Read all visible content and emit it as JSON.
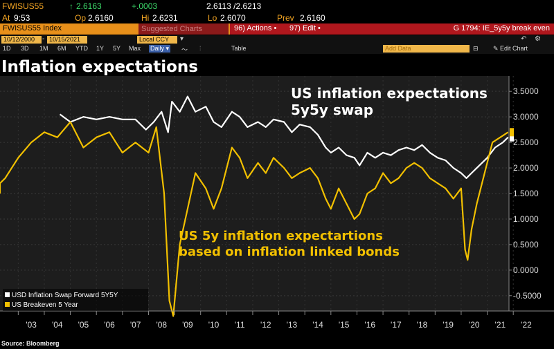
{
  "quote": {
    "ticker": "FWISUS55",
    "last_arrow": "↑",
    "last": "2.6163",
    "change": "+.0003",
    "bid_ask": "2.6113 /2.6213",
    "at_label": "At",
    "at_time": "9:53",
    "open_label": "Op",
    "open": "2.6160",
    "high_label": "Hi",
    "high": "2.6231",
    "low_label": "Lo",
    "low": "2.6070",
    "prev_label": "Prev",
    "prev": "2.6160"
  },
  "menubar": {
    "index_name": "FWISUS55 Index",
    "suggested": "Suggested Charts",
    "actions": "96) Actions •",
    "edit": "97) Edit •",
    "chart_id": "G 1794: IE_5y5y break even"
  },
  "toolbar": {
    "start_date": "10/12/2000",
    "end_date": "10/15/2021",
    "currency": "Local CCY",
    "ranges": [
      "1D",
      "3D",
      "1M",
      "6M",
      "YTD",
      "1Y",
      "5Y",
      "Max"
    ],
    "frequency": "Daily ▾",
    "table": "Table",
    "add_data": "Add Data",
    "edit_chart": "✎ Edit Chart"
  },
  "page_title": "Inflation expectations",
  "annotations": {
    "white_line1": "US inflation expectations",
    "white_line2": "5y5y swap",
    "yellow_line1": "US 5y inflation expectartions",
    "yellow_line2": "based on inflation linked bonds"
  },
  "source": "Source: Bloomberg",
  "colors": {
    "swap": "#ffffff",
    "breakeven": "#f2c000",
    "accent": "#e8901a",
    "red_bar": "#b0171d"
  },
  "chart_data": {
    "type": "line",
    "xlabel": "",
    "ylabel": "",
    "x_ticks": [
      "'03",
      "'04",
      "'05",
      "'06",
      "'07",
      "'08",
      "'09",
      "'10",
      "'11",
      "'12",
      "'13",
      "'14",
      "'15",
      "'16",
      "'17",
      "'18",
      "'19",
      "'20",
      "'21",
      "'22"
    ],
    "y_ticks": [
      "3.5000",
      "3.0000",
      "2.5000",
      "2.0000",
      "1.5000",
      "1.0000",
      "0.5000",
      "0.0000",
      "-0.5000"
    ],
    "ylim": [
      -0.8,
      3.8
    ],
    "xlim": [
      2002.3,
      2022.5
    ],
    "legend_position": "bottom-left",
    "series": [
      {
        "name": "USD Inflation Swap Forward 5Y5Y",
        "color": "#ffffff",
        "x": [
          2004.6,
          2005.0,
          2005.5,
          2006.0,
          2006.5,
          2007.0,
          2007.5,
          2007.9,
          2008.2,
          2008.5,
          2008.75,
          2008.9,
          2009.2,
          2009.5,
          2009.8,
          2010.2,
          2010.5,
          2010.8,
          2011.2,
          2011.5,
          2011.8,
          2012.2,
          2012.5,
          2012.8,
          2013.2,
          2013.5,
          2013.8,
          2014.2,
          2014.5,
          2014.8,
          2015.0,
          2015.3,
          2015.6,
          2015.9,
          2016.1,
          2016.4,
          2016.7,
          2017.0,
          2017.3,
          2017.6,
          2017.9,
          2018.2,
          2018.5,
          2018.8,
          2019.1,
          2019.4,
          2019.7,
          2020.0,
          2020.2,
          2020.4,
          2020.7,
          2021.0,
          2021.3,
          2021.6,
          2021.8
        ],
        "values": [
          3.05,
          2.9,
          3.0,
          2.95,
          3.0,
          2.95,
          2.95,
          2.75,
          2.9,
          3.1,
          2.7,
          3.3,
          3.1,
          3.4,
          3.1,
          3.2,
          2.9,
          2.8,
          3.1,
          3.0,
          2.8,
          2.9,
          2.8,
          2.95,
          2.9,
          2.7,
          2.85,
          2.8,
          2.65,
          2.4,
          2.3,
          2.4,
          2.25,
          2.2,
          2.05,
          2.3,
          2.2,
          2.3,
          2.25,
          2.35,
          2.4,
          2.35,
          2.45,
          2.3,
          2.2,
          2.15,
          2.0,
          1.9,
          1.8,
          1.9,
          2.05,
          2.2,
          2.4,
          2.5,
          2.6
        ]
      },
      {
        "name": "US Breakeven 5 Year",
        "color": "#f2c000",
        "x": [
          2001.0,
          2002.0,
          2002.5,
          2003.0,
          2003.5,
          2004.0,
          2004.5,
          2005.0,
          2005.5,
          2006.0,
          2006.5,
          2007.0,
          2007.5,
          2008.0,
          2008.3,
          2008.6,
          2008.8,
          2008.95,
          2009.2,
          2009.5,
          2009.8,
          2010.2,
          2010.5,
          2010.8,
          2011.2,
          2011.5,
          2011.8,
          2012.2,
          2012.5,
          2012.8,
          2013.2,
          2013.5,
          2013.8,
          2014.2,
          2014.5,
          2014.8,
          2015.0,
          2015.3,
          2015.6,
          2015.9,
          2016.1,
          2016.4,
          2016.7,
          2017.0,
          2017.3,
          2017.6,
          2017.9,
          2018.2,
          2018.5,
          2018.8,
          2019.1,
          2019.4,
          2019.7,
          2020.0,
          2020.15,
          2020.25,
          2020.4,
          2020.6,
          2020.9,
          2021.2,
          2021.5,
          2021.8
        ],
        "values": [
          1.5,
          1.7,
          1.8,
          2.2,
          2.5,
          2.7,
          2.6,
          2.9,
          2.4,
          2.6,
          2.7,
          2.3,
          2.5,
          2.3,
          2.8,
          1.5,
          -0.6,
          -0.9,
          0.5,
          1.2,
          1.9,
          1.6,
          1.2,
          1.6,
          2.4,
          2.2,
          1.8,
          2.1,
          1.9,
          2.2,
          2.0,
          1.8,
          1.9,
          2.0,
          1.8,
          1.4,
          1.2,
          1.6,
          1.3,
          1.0,
          1.1,
          1.5,
          1.6,
          1.9,
          1.7,
          1.8,
          2.0,
          2.1,
          2.0,
          1.8,
          1.7,
          1.6,
          1.4,
          1.6,
          0.4,
          0.2,
          0.8,
          1.3,
          1.9,
          2.5,
          2.6,
          2.7
        ]
      }
    ]
  }
}
